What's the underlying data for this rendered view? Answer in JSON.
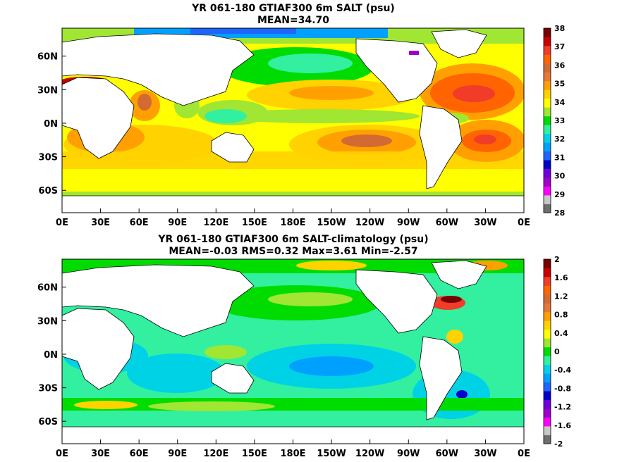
{
  "chart_data": [
    {
      "type": "heatmap",
      "title": "YR 061-180 GTIAF300 6m SALT (psu)",
      "subtitle": "MEAN=34.70",
      "x_ticks": [
        "0E",
        "30E",
        "60E",
        "90E",
        "120E",
        "150E",
        "180E",
        "150W",
        "120W",
        "90W",
        "60W",
        "30W",
        "0E"
      ],
      "y_ticks": [
        "60N",
        "30N",
        "0N",
        "30S",
        "60S"
      ],
      "y_tick_lat": [
        60,
        30,
        0,
        -30,
        -60
      ],
      "lon_range": [
        0,
        360
      ],
      "lat_range": [
        -80,
        85
      ],
      "colorbar": {
        "labels": [
          "28",
          "29",
          "30",
          "31",
          "32",
          "33",
          "34",
          "35",
          "36",
          "37",
          "38"
        ],
        "range": [
          28,
          38
        ],
        "colors": [
          "#6e6e6e",
          "#c8c8c8",
          "#ff00ff",
          "#a000c8",
          "#6e00dc",
          "#0000c8",
          "#1e64ff",
          "#00a0ff",
          "#00d2e6",
          "#32f0a0",
          "#00dc00",
          "#a0e632",
          "#ffff00",
          "#ffd200",
          "#ffa000",
          "#e6783c",
          "#d26a32",
          "#ff6400",
          "#f03c28",
          "#c80000",
          "#780000"
        ]
      }
    },
    {
      "type": "heatmap",
      "title": "YR 061-180 GTIAF300 6m SALT-climatology (psu)",
      "subtitle": "MEAN=-0.03   RMS=0.32   Max=3.61   Min=-2.57",
      "x_ticks": [
        "0E",
        "30E",
        "60E",
        "90E",
        "120E",
        "150E",
        "180E",
        "150W",
        "120W",
        "90W",
        "60W",
        "30W",
        "0E"
      ],
      "y_ticks": [
        "60N",
        "30N",
        "0N",
        "30S",
        "60S"
      ],
      "y_tick_lat": [
        60,
        30,
        0,
        -30,
        -60
      ],
      "lon_range": [
        0,
        360
      ],
      "lat_range": [
        -80,
        85
      ],
      "colorbar": {
        "labels": [
          "2",
          "1.6",
          "1.2",
          "0.8",
          "0.4",
          "0",
          "-0.4",
          "-0.8",
          "-1.2",
          "-1.6",
          "-2"
        ],
        "range": [
          -2,
          2
        ],
        "colors": [
          "#6e6e6e",
          "#c8c8c8",
          "#ff00ff",
          "#a000c8",
          "#6e00dc",
          "#0000c8",
          "#1e64ff",
          "#00a0ff",
          "#00d2e6",
          "#32f0a0",
          "#00dc00",
          "#a0e632",
          "#ffff00",
          "#ffd200",
          "#ffa000",
          "#e6783c",
          "#d26a32",
          "#ff6400",
          "#f03c28",
          "#c80000",
          "#780000"
        ]
      }
    }
  ]
}
